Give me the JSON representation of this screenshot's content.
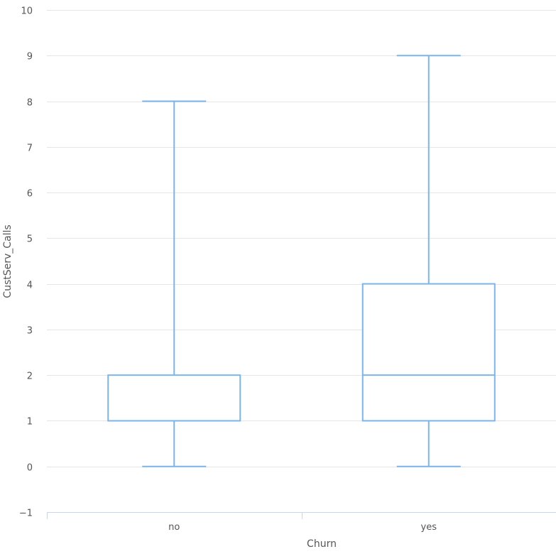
{
  "chart_data": {
    "type": "boxplot",
    "xlabel": "Churn",
    "ylabel": "CustServ_Calls",
    "ylim": [
      -1,
      10
    ],
    "y_ticks": [
      -1,
      0,
      1,
      2,
      3,
      4,
      5,
      6,
      7,
      8,
      9,
      10
    ],
    "y_tick_labels": [
      "−1",
      "0",
      "1",
      "2",
      "3",
      "4",
      "5",
      "6",
      "7",
      "8",
      "9",
      "10"
    ],
    "categories": [
      "no",
      "yes"
    ],
    "boxes": [
      {
        "category": "no",
        "low": 0,
        "q1": 1,
        "median": 1,
        "q3": 2,
        "high": 8
      },
      {
        "category": "yes",
        "low": 0,
        "q1": 1,
        "median": 2,
        "q3": 4,
        "high": 9
      }
    ],
    "grid": true,
    "box_color": "#7cb5ec",
    "grid_color": "#e6e6e6",
    "axis_color": "#ccd6eb"
  }
}
